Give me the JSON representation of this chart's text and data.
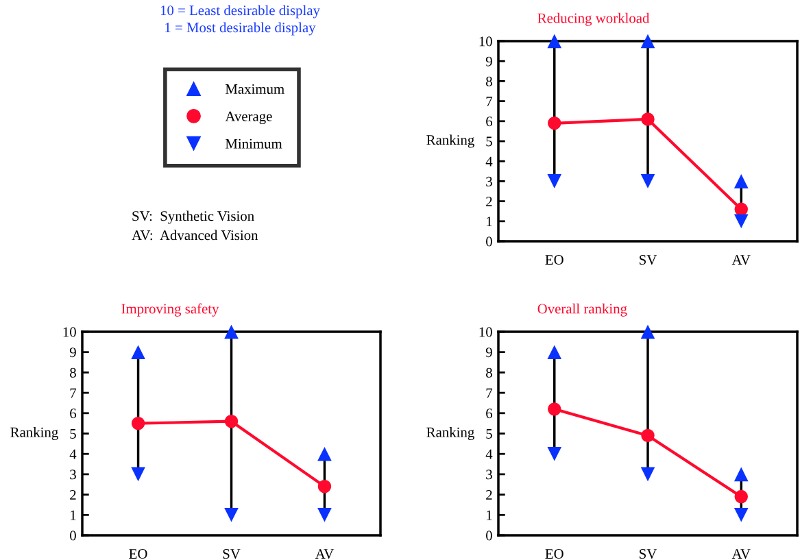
{
  "chart_data": [
    {
      "type": "other",
      "annotations": [
        "10 = Least desirable display",
        "1 = Most desirable display",
        "SV:  Synthetic Vision",
        "AV:  Advanced Vision"
      ]
    },
    {
      "type": "line",
      "title": "Reducing workload",
      "ylabel": "Ranking",
      "categories": [
        "EO",
        "SV",
        "AV"
      ],
      "ylim": [
        0,
        10
      ],
      "yticks": [
        0,
        1,
        2,
        3,
        4,
        5,
        6,
        7,
        8,
        9,
        10
      ],
      "legend": "left",
      "series": [
        {
          "name": "Maximum",
          "type": "scatter",
          "color": "#0a32ff",
          "marker": "triangle",
          "values": [
            10,
            10,
            3
          ]
        },
        {
          "name": "Average",
          "type": "line",
          "color": "#ff0a2e",
          "marker": "circle",
          "values": [
            5.9,
            6.1,
            1.6
          ]
        },
        {
          "name": "Minimum",
          "type": "scatter",
          "color": "#0a32ff",
          "marker": "triangle_down",
          "values": [
            3,
            3,
            1
          ]
        }
      ]
    },
    {
      "type": "line",
      "title": "Improving safety",
      "ylabel": "Ranking",
      "categories": [
        "EO",
        "SV",
        "AV"
      ],
      "ylim": [
        0,
        10
      ],
      "yticks": [
        0,
        1,
        2,
        3,
        4,
        5,
        6,
        7,
        8,
        9,
        10
      ],
      "series": [
        {
          "type": "scatter",
          "color": "#0a32ff",
          "marker": "triangle",
          "values": [
            9,
            10,
            4
          ]
        },
        {
          "type": "line",
          "color": "#ff0a2e",
          "marker": "circle",
          "values": [
            5.5,
            5.6,
            2.4
          ]
        },
        {
          "type": "scatter",
          "color": "#0a32ff",
          "marker": "triangle_down",
          "values": [
            3,
            1,
            1
          ]
        }
      ]
    },
    {
      "type": "line",
      "title": "Overall ranking",
      "ylabel": "Ranking",
      "categories": [
        "EO",
        "SV",
        "AV"
      ],
      "ylim": [
        0,
        10
      ],
      "yticks": [
        0,
        1,
        2,
        3,
        4,
        5,
        6,
        7,
        8,
        9,
        10
      ],
      "series": [
        {
          "type": "scatter",
          "color": "#0a32ff",
          "marker": "triangle",
          "values": [
            9,
            10,
            3
          ]
        },
        {
          "type": "line",
          "color": "#ff0a2e",
          "marker": "circle",
          "values": [
            6.2,
            4.9,
            1.9
          ]
        },
        {
          "type": "scatter",
          "color": "#0a32ff",
          "marker": "triangle_down",
          "values": [
            4,
            3,
            1
          ]
        }
      ]
    }
  ]
}
